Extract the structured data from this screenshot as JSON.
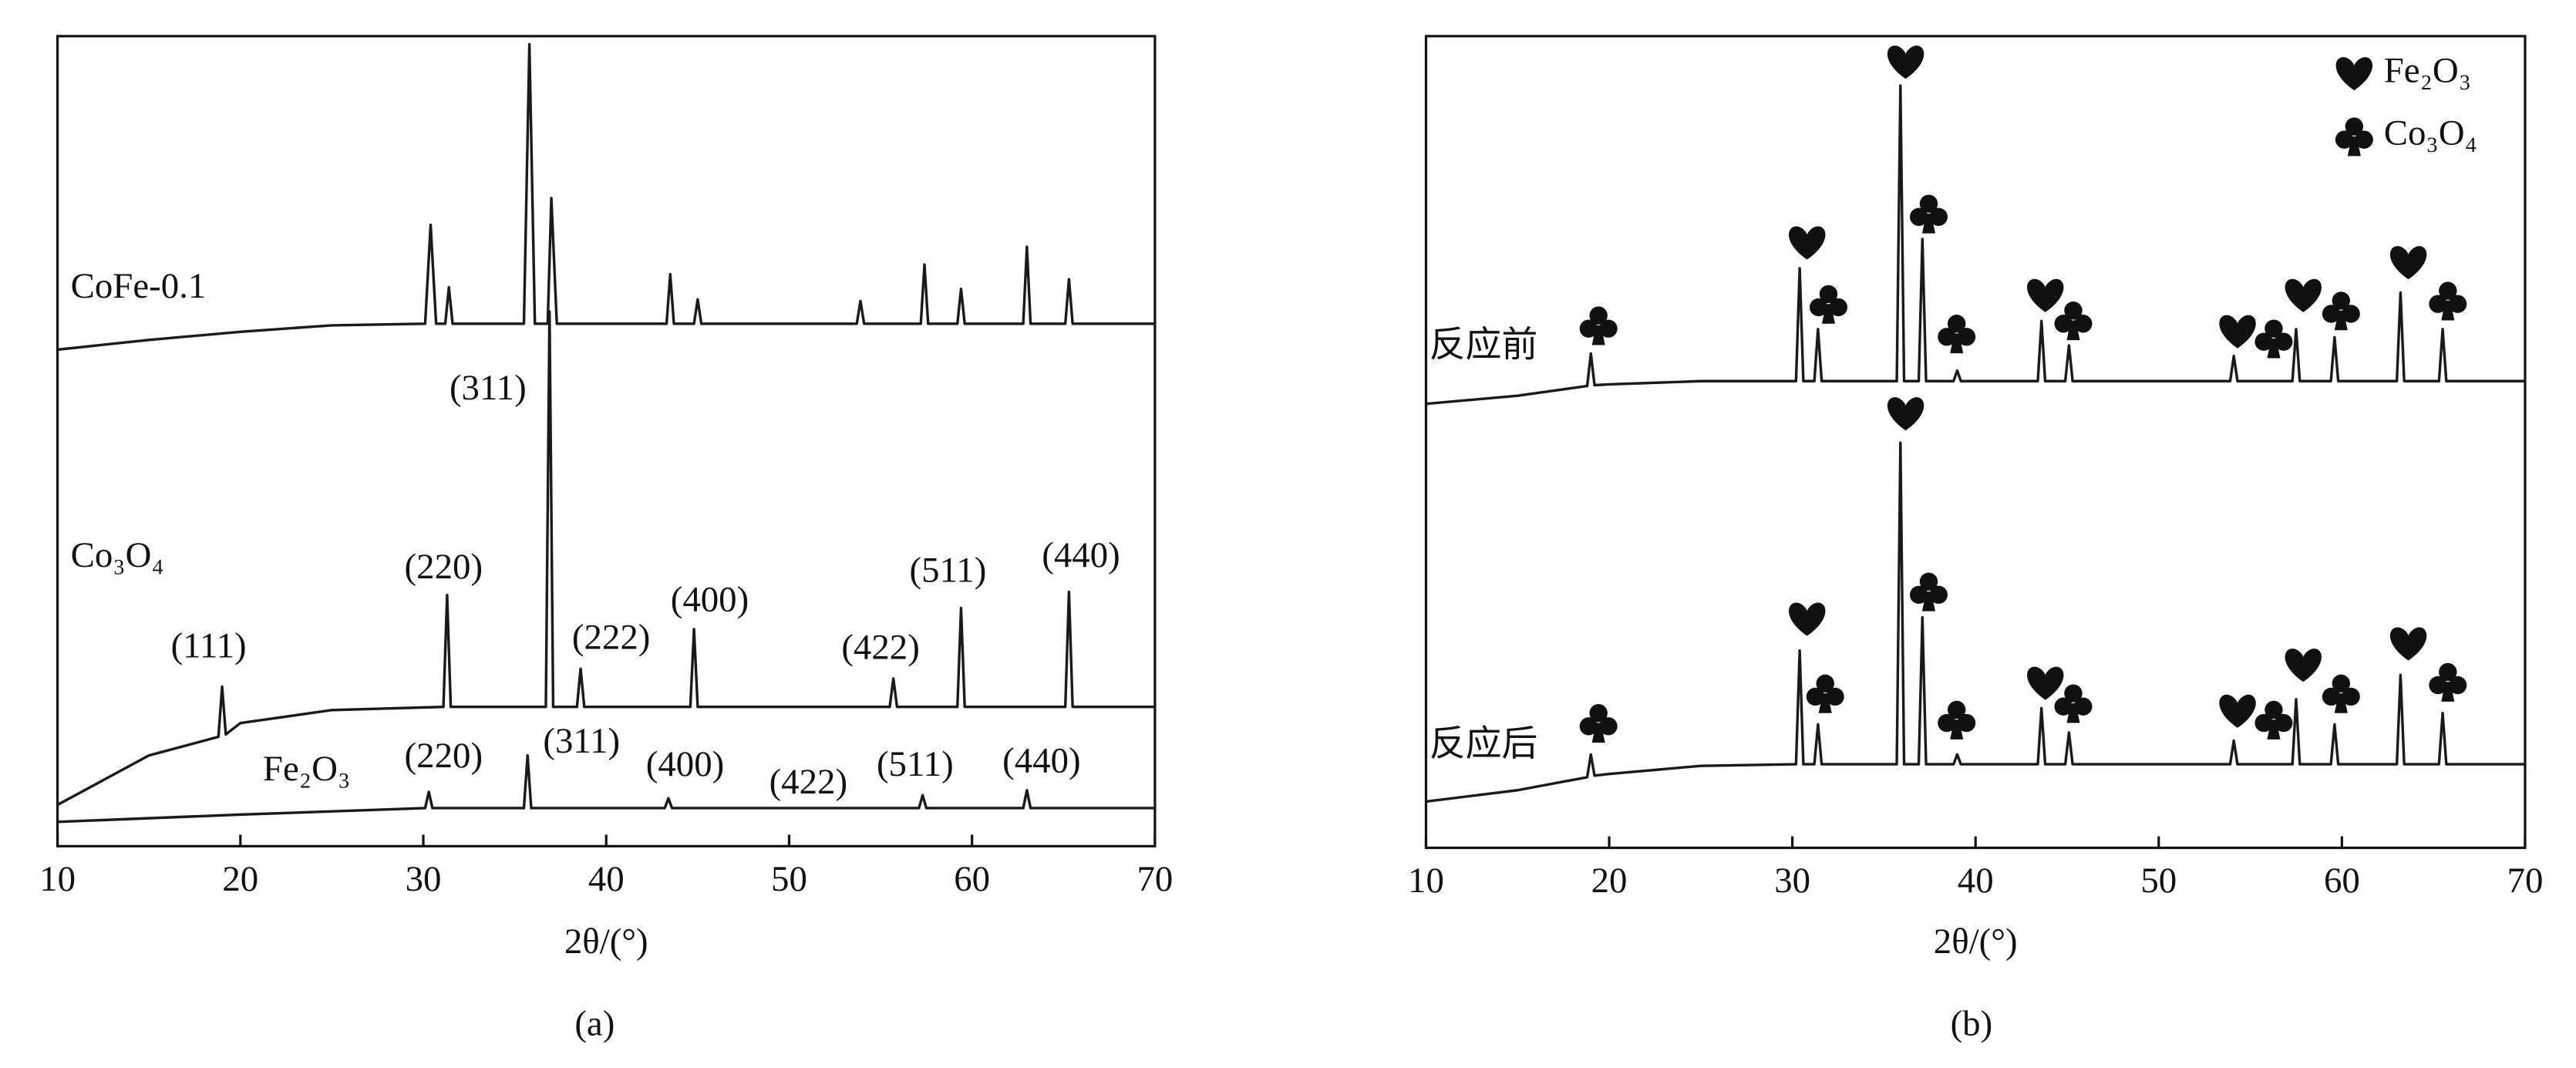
{
  "chart_data": [
    {
      "type": "line",
      "caption": "(a)",
      "xlabel": "2θ/(°)",
      "xlim": [
        10,
        70
      ],
      "xticks": [
        10,
        20,
        30,
        40,
        50,
        60,
        70
      ],
      "ylim": [
        0,
        100
      ],
      "series": [
        {
          "name": "CoFe-0.1",
          "color": "#1a1a1a",
          "x": [
            10,
            15,
            20,
            25,
            30.1,
            30.4,
            30.7,
            31.2,
            31.4,
            31.6,
            35.5,
            35.8,
            36.1,
            36.8,
            37.0,
            37.3,
            43.3,
            43.5,
            43.7,
            44.8,
            45.0,
            45.2,
            53.7,
            53.9,
            54.1,
            57.2,
            57.4,
            57.6,
            59.2,
            59.4,
            59.6,
            62.8,
            63.0,
            63.2,
            65.1,
            65.3,
            65.5,
            70
          ],
          "values": [
            61.3,
            62.5,
            63.5,
            64.3,
            64.5,
            76.7,
            64.5,
            64.5,
            69,
            64.5,
            64.5,
            99,
            64.5,
            64.5,
            80,
            64.5,
            64.5,
            70.6,
            64.5,
            64.5,
            67.5,
            64.5,
            64.5,
            67.3,
            64.5,
            64.5,
            71.8,
            64.5,
            64.5,
            68.8,
            64.5,
            64.5,
            74,
            64.5,
            64.5,
            70,
            64.5,
            64.5
          ]
        },
        {
          "name": "Co₃O₄",
          "color": "#1a1a1a",
          "x": [
            10,
            15,
            18.8,
            19.0,
            19.2,
            20,
            25,
            31.1,
            31.3,
            31.5,
            36.7,
            36.9,
            37.1,
            38.4,
            38.6,
            38.8,
            44.6,
            44.8,
            45.0,
            55.5,
            55.7,
            55.9,
            59.2,
            59.4,
            59.6,
            65.1,
            65.3,
            65.5,
            70
          ],
          "values": [
            5.1,
            11.2,
            13.5,
            19.7,
            13.8,
            15.2,
            16.8,
            17.2,
            31,
            17.2,
            17.2,
            66,
            17.2,
            17.2,
            21.9,
            17.2,
            17.2,
            26.8,
            17.2,
            17.2,
            20.7,
            17.2,
            17.2,
            29.4,
            17.2,
            17.2,
            31.4,
            17.2,
            17.2
          ]
        },
        {
          "name": "Fe₂O₃",
          "color": "#1a1a1a",
          "x": [
            10,
            20,
            30.1,
            30.3,
            30.5,
            35.5,
            35.7,
            35.9,
            43.2,
            43.4,
            43.6,
            57.1,
            57.3,
            57.5,
            62.8,
            63.0,
            63.2,
            70
          ],
          "values": [
            3.0,
            3.9,
            4.7,
            6.7,
            4.7,
            4.7,
            11.2,
            4.7,
            4.7,
            5.9,
            4.7,
            4.7,
            6.3,
            4.7,
            4.7,
            6.9,
            4.7,
            4.7
          ]
        }
      ],
      "annotations": [
        "(311)",
        "(220)",
        "(222)",
        "(400)",
        "(111)",
        "(422)",
        "(511)",
        "(440)",
        "(220)",
        "(311)",
        "(400)",
        "(422)",
        "(511)",
        "(440)"
      ]
    },
    {
      "type": "line",
      "caption": "(b)",
      "xlabel": "2θ/(°)",
      "xlim": [
        10,
        70
      ],
      "xticks": [
        10,
        20,
        30,
        40,
        50,
        60,
        70
      ],
      "ylim": [
        0,
        100
      ],
      "legend": [
        {
          "name": "Fe₂O₃",
          "symbol": "heart"
        },
        {
          "name": "Co₃O₄",
          "symbol": "club"
        }
      ],
      "series": [
        {
          "name": "反应前",
          "color": "#1a1a1a",
          "x": [
            10,
            15,
            18.8,
            19.0,
            19.2,
            20,
            25,
            30.2,
            30.4,
            30.6,
            31.2,
            31.4,
            31.6,
            35.7,
            35.9,
            36.1,
            36.9,
            37.1,
            37.3,
            38.8,
            39.0,
            39.2,
            43.4,
            43.6,
            43.8,
            44.9,
            45.1,
            45.3,
            53.9,
            54.1,
            54.3,
            57.3,
            57.5,
            57.7,
            59.4,
            59.6,
            59.8,
            63.0,
            63.2,
            63.4,
            65.3,
            65.5,
            65.7,
            70
          ],
          "values": [
            54.7,
            55.7,
            56.9,
            60.9,
            57.0,
            57.1,
            57.5,
            57.5,
            71.4,
            57.5,
            57.5,
            63.9,
            57.5,
            57.5,
            93.9,
            57.5,
            57.5,
            75,
            57.5,
            57.5,
            58.8,
            57.5,
            57.5,
            64.9,
            57.5,
            57.5,
            61.9,
            57.5,
            57.5,
            60.6,
            57.5,
            57.5,
            63.9,
            57.5,
            57.5,
            62.9,
            57.5,
            57.5,
            68.4,
            57.5,
            57.5,
            63.9,
            57.5,
            57.5
          ]
        },
        {
          "name": "反应后",
          "color": "#1a1a1a",
          "x": [
            10,
            15,
            18.8,
            19.0,
            19.2,
            20,
            25,
            30.2,
            30.4,
            30.6,
            31.2,
            31.4,
            31.6,
            35.7,
            35.9,
            36.1,
            36.9,
            37.1,
            37.3,
            38.8,
            39.0,
            39.2,
            43.4,
            43.6,
            43.8,
            44.9,
            45.1,
            45.3,
            53.9,
            54.1,
            54.3,
            57.3,
            57.5,
            57.7,
            59.4,
            59.6,
            59.8,
            63.0,
            63.2,
            63.4,
            65.3,
            65.5,
            65.7,
            70
          ],
          "values": [
            5.7,
            7.1,
            8.7,
            11.5,
            8.9,
            9.1,
            10.1,
            10.3,
            24.3,
            10.3,
            10.3,
            15.2,
            10.3,
            10.3,
            49.9,
            10.3,
            10.3,
            28.4,
            10.3,
            10.3,
            11.5,
            10.3,
            10.3,
            17.2,
            10.3,
            10.3,
            14.2,
            10.3,
            10.3,
            13.2,
            10.3,
            10.3,
            18.3,
            10.3,
            10.3,
            15.2,
            10.3,
            10.3,
            21.3,
            10.3,
            10.3,
            16.6,
            10.3,
            10.3
          ]
        }
      ]
    }
  ]
}
